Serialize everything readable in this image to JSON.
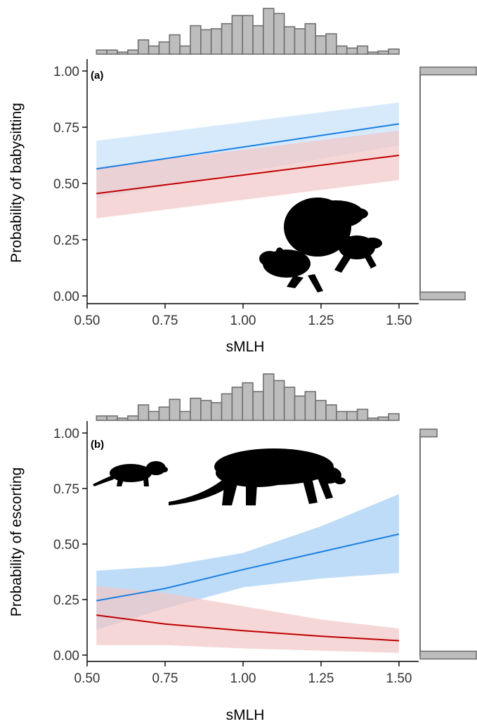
{
  "colors": {
    "blue_line": "#1a7fe0",
    "blue_band_a": "#cfe6fb",
    "blue_band_b": "#b3d6f7",
    "red_line": "#c00000",
    "red_band": "#f2c6c6",
    "hist_fill": "#bdbdbd",
    "hist_stroke": "#707070"
  },
  "chart_data": [
    {
      "type": "line",
      "panel_label": "(a)",
      "xlabel": "sMLH",
      "ylabel": "Probability of babysitting",
      "xlim": [
        0.5,
        1.55
      ],
      "ylim": [
        0.0,
        1.0
      ],
      "x_ticks": [
        "0.50",
        "0.75",
        "1.00",
        "1.25",
        "1.50"
      ],
      "y_ticks": [
        "0.00",
        "0.25",
        "0.50",
        "0.75",
        "1.00"
      ],
      "series": [
        {
          "color_key": "blue",
          "x": [
            0.53,
            1.5
          ],
          "y": [
            0.565,
            0.765
          ],
          "lower": [
            0.435,
            0.67
          ],
          "upper": [
            0.69,
            0.86
          ]
        },
        {
          "color_key": "red",
          "x": [
            0.53,
            1.5
          ],
          "y": [
            0.455,
            0.625
          ],
          "lower": [
            0.345,
            0.515
          ],
          "upper": [
            0.57,
            0.735
          ]
        }
      ],
      "top_histogram": [
        4,
        4,
        2,
        4,
        14,
        8,
        12,
        19,
        8,
        28,
        24,
        25,
        30,
        38,
        38,
        28,
        45,
        40,
        27,
        25,
        30,
        18,
        20,
        8,
        6,
        8,
        2,
        3,
        5
      ],
      "right_histogram": [
        {
          "y": 0.0,
          "count": 0.8
        },
        {
          "y": 1.0,
          "count": 1.0
        }
      ]
    },
    {
      "type": "line",
      "panel_label": "(b)",
      "xlabel": "sMLH",
      "ylabel": "Probability of escorting",
      "xlim": [
        0.5,
        1.55
      ],
      "ylim": [
        0.0,
        1.0
      ],
      "x_ticks": [
        "0.50",
        "0.75",
        "1.00",
        "1.25",
        "1.50"
      ],
      "y_ticks": [
        "0.00",
        "0.25",
        "0.50",
        "0.75",
        "1.00"
      ],
      "series": [
        {
          "color_key": "blue",
          "x": [
            0.53,
            0.75,
            1.0,
            1.25,
            1.5
          ],
          "y": [
            0.245,
            0.3,
            0.385,
            0.465,
            0.545
          ],
          "lower": [
            0.115,
            0.21,
            0.305,
            0.345,
            0.37
          ],
          "upper": [
            0.38,
            0.4,
            0.46,
            0.58,
            0.725
          ]
        },
        {
          "color_key": "red",
          "x": [
            0.53,
            0.75,
            1.0,
            1.25,
            1.5
          ],
          "y": [
            0.18,
            0.14,
            0.11,
            0.085,
            0.065
          ],
          "lower": [
            0.045,
            0.045,
            0.03,
            0.02,
            0.01
          ],
          "upper": [
            0.31,
            0.28,
            0.22,
            0.16,
            0.12
          ]
        }
      ],
      "top_histogram": [
        4,
        4,
        2,
        4,
        14,
        8,
        12,
        19,
        8,
        20,
        18,
        16,
        24,
        30,
        34,
        26,
        42,
        36,
        30,
        22,
        26,
        18,
        14,
        8,
        8,
        10,
        2,
        3,
        6
      ],
      "right_histogram": [
        {
          "y": 0.0,
          "count": 1.0
        },
        {
          "y": 1.0,
          "count": 0.3
        }
      ]
    }
  ]
}
